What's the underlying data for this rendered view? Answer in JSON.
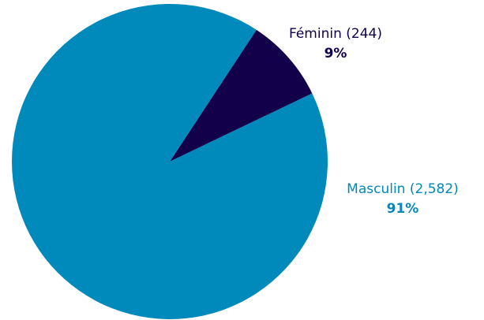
{
  "chart_data": {
    "type": "pie",
    "categories": [
      "Féminin",
      "Masculin"
    ],
    "values": [
      244,
      2582
    ],
    "value_labels": [
      "(244)",
      "(2,582)"
    ],
    "percent_labels": [
      "9%",
      "91%"
    ],
    "colors": [
      "#12004a",
      "#0089bb"
    ]
  }
}
